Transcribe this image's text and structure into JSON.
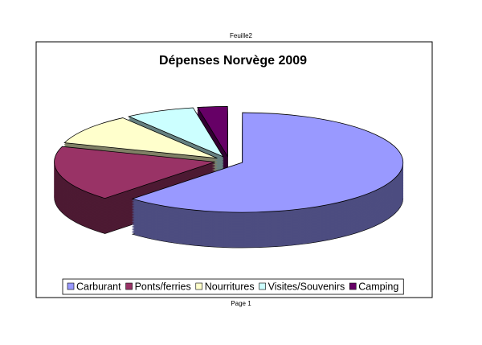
{
  "header": "Feuille2",
  "footer": "Page 1",
  "chart_data": {
    "type": "pie",
    "title": "Dépenses Norvège 2009",
    "categories": [
      "Carburant",
      "Ponts/ferries",
      "Nourritures",
      "Visites/Souvenirs",
      "Camping"
    ],
    "values": [
      62,
      18,
      10,
      7,
      3
    ],
    "colors": [
      "#9999ff",
      "#993366",
      "#ffffcc",
      "#ccffff",
      "#660066"
    ]
  }
}
